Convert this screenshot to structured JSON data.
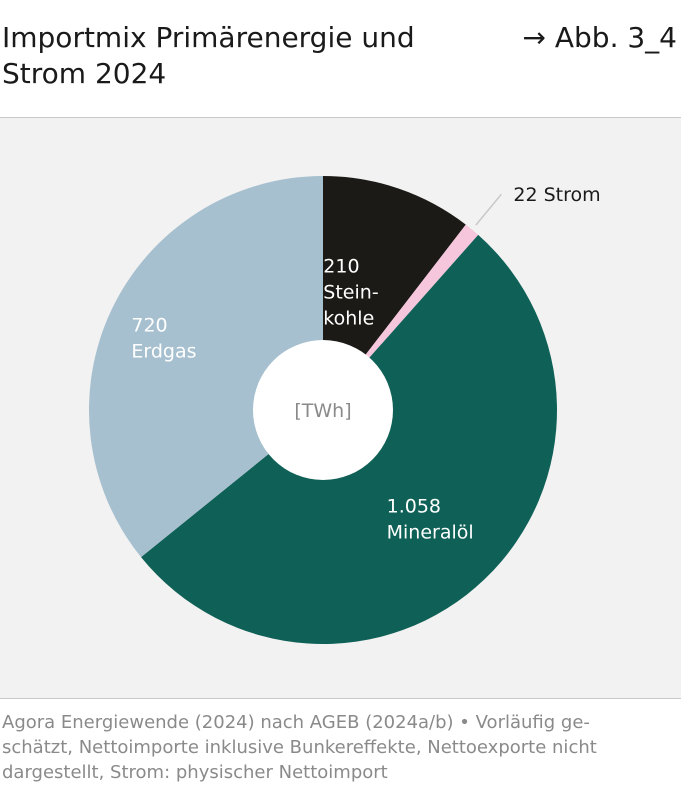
{
  "header": {
    "title_line1": "Importmix Primärenergie und",
    "title_line2": "Strom 2024",
    "figure_ref": "→ Abb. 3_4"
  },
  "footer": {
    "source_line1": "Agora Energiewende (2024) nach AGEB (2024a/b) • Vorläufig ge-",
    "source_line2": "schätzt, Nettoimporte inklusive Bunkereffekte, Nettoexporte nicht",
    "source_line3": "dargestellt, Strom: physischer Nettoimport"
  },
  "chart_data": {
    "type": "pie",
    "title": "Importmix Primärenergie und Strom 2024",
    "unit": "[TWh]",
    "center_label": "[TWh]",
    "donut": true,
    "start": "12 o'clock",
    "direction": "clockwise",
    "slices": [
      {
        "name": "Steinkohle",
        "value": 210,
        "value_text": "210",
        "label_lines": [
          "Stein-",
          "kohle"
        ],
        "color": "#1c1a16",
        "label_color": "#ffffff"
      },
      {
        "name": "Strom",
        "value": 22,
        "value_text": "22",
        "label_lines": [
          "Strom"
        ],
        "color": "#f5c6dc",
        "label_color": "#1a1a1a",
        "label_outside": true
      },
      {
        "name": "Mineralöl",
        "value": 1058,
        "value_text": "1.058",
        "label_lines": [
          "Mineralöl"
        ],
        "color": "#0f6157",
        "label_color": "#ffffff"
      },
      {
        "name": "Erdgas",
        "value": 720,
        "value_text": "720",
        "label_lines": [
          "Erdgas"
        ],
        "color": "#a7c0cf",
        "label_color": "#ffffff"
      }
    ],
    "colors": {
      "plot_background": "#f2f2f2",
      "center_hole": "#ffffff",
      "center_text": "#8a8a8a",
      "leader_line": "#c8c8c8"
    }
  }
}
